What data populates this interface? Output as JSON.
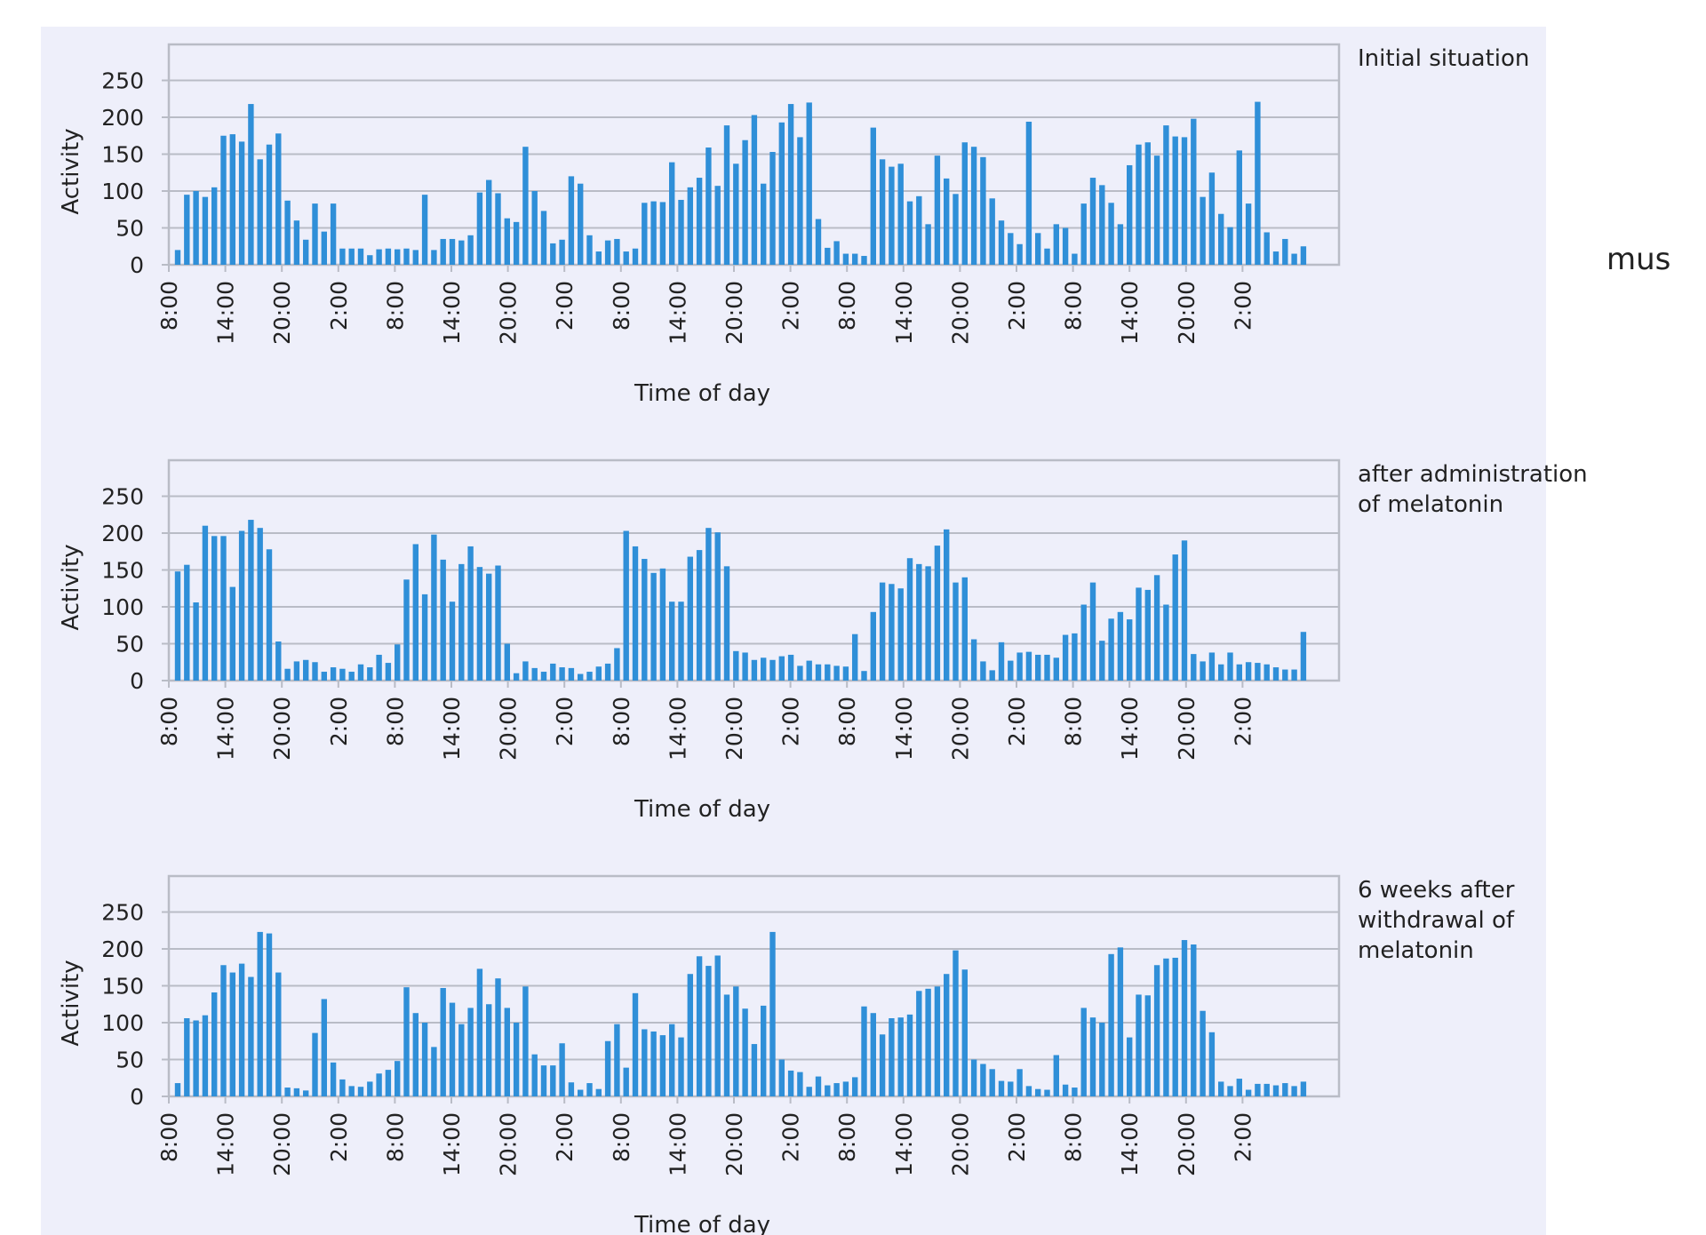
{
  "side_text": "mus",
  "colors": {
    "bar": "#2f8fd8",
    "panel": "#eeeffa",
    "grid": "#b9bcc6",
    "frame": "#b9bcc6",
    "text": "#222222"
  },
  "chart_data": [
    {
      "type": "bar",
      "title": "Initial situation",
      "xlabel": "Time of day",
      "ylabel": "Activity",
      "ylim": [
        0,
        300
      ],
      "yticks": [
        0,
        50,
        100,
        150,
        200,
        250
      ],
      "xtick_labels": [
        "8:00",
        "14:00",
        "20:00",
        "2:00",
        "8:00",
        "14:00",
        "20:00",
        "2:00",
        "8:00",
        "14:00",
        "20:00",
        "2:00",
        "8:00",
        "14:00",
        "20:00",
        "2:00",
        "8:00",
        "14:00",
        "20:00",
        "2:00"
      ],
      "grid": true,
      "values": [
        20,
        95,
        100,
        92,
        105,
        175,
        177,
        167,
        218,
        143,
        163,
        178,
        87,
        60,
        34,
        83,
        45,
        83,
        22,
        22,
        22,
        13,
        21,
        22,
        21,
        22,
        20,
        95,
        20,
        35,
        35,
        33,
        40,
        98,
        115,
        97,
        63,
        58,
        160,
        100,
        73,
        29,
        34,
        120,
        110,
        40,
        18,
        33,
        35,
        18,
        22,
        84,
        86,
        85,
        139,
        88,
        105,
        118,
        159,
        107,
        189,
        137,
        169,
        203,
        110,
        153,
        193,
        218,
        173,
        220,
        62,
        23,
        32,
        15,
        15,
        12,
        186,
        143,
        133,
        137,
        86,
        93,
        55,
        148,
        117,
        96,
        166,
        160,
        146,
        90,
        60,
        43,
        28,
        194,
        43,
        22,
        55,
        50,
        15,
        83,
        118,
        108,
        84,
        55,
        135,
        163,
        166,
        148,
        189,
        174,
        173,
        198,
        92,
        125,
        69,
        51,
        155,
        83,
        221,
        44,
        18,
        35,
        15,
        25
      ]
    },
    {
      "type": "bar",
      "title": "after administration of melatonin",
      "xlabel": "Time of day",
      "ylabel": "Activity",
      "ylim": [
        0,
        300
      ],
      "yticks": [
        0,
        50,
        100,
        150,
        200,
        250
      ],
      "xtick_labels": [
        "8:00",
        "14:00",
        "20:00",
        "2:00",
        "8:00",
        "14:00",
        "20:00",
        "2:00",
        "8:00",
        "14:00",
        "20:00",
        "2:00",
        "8:00",
        "14:00",
        "20:00",
        "2:00",
        "8:00",
        "14:00",
        "20:00",
        "2:00"
      ],
      "grid": true,
      "values": [
        148,
        157,
        106,
        210,
        196,
        196,
        127,
        203,
        218,
        207,
        178,
        53,
        16,
        26,
        28,
        25,
        12,
        18,
        16,
        12,
        22,
        18,
        35,
        24,
        49,
        137,
        185,
        117,
        198,
        164,
        107,
        158,
        182,
        154,
        145,
        156,
        50,
        10,
        26,
        17,
        12,
        23,
        18,
        17,
        9,
        12,
        19,
        23,
        44,
        203,
        182,
        165,
        146,
        152,
        107,
        107,
        168,
        177,
        207,
        201,
        155,
        40,
        38,
        28,
        31,
        28,
        33,
        35,
        20,
        27,
        22,
        22,
        20,
        19,
        63,
        13,
        93,
        133,
        131,
        125,
        166,
        158,
        155,
        183,
        205,
        133,
        140,
        56,
        26,
        14,
        52,
        27,
        38,
        39,
        35,
        35,
        31,
        62,
        64,
        103,
        133,
        54,
        84,
        93,
        83,
        126,
        123,
        143,
        103,
        171,
        190,
        36,
        26,
        38,
        22,
        38,
        22,
        25,
        24,
        22,
        18,
        15,
        15,
        66
      ]
    },
    {
      "type": "bar",
      "title": "6 weeks after withdrawal of melatonin",
      "xlabel": "Time of day",
      "ylabel": "Activity",
      "ylim": [
        0,
        300
      ],
      "yticks": [
        0,
        50,
        100,
        150,
        200,
        250
      ],
      "xtick_labels": [
        "8:00",
        "14:00",
        "20:00",
        "2:00",
        "8:00",
        "14:00",
        "20:00",
        "2:00",
        "8:00",
        "14:00",
        "20:00",
        "2:00",
        "8:00",
        "14:00",
        "20:00",
        "2:00",
        "8:00",
        "14:00",
        "20:00",
        "2:00"
      ],
      "grid": true,
      "values": [
        18,
        106,
        103,
        110,
        141,
        178,
        168,
        180,
        162,
        223,
        221,
        168,
        12,
        11,
        8,
        86,
        132,
        46,
        23,
        14,
        13,
        20,
        31,
        36,
        48,
        148,
        113,
        100,
        67,
        147,
        127,
        98,
        120,
        173,
        125,
        160,
        120,
        100,
        149,
        57,
        42,
        42,
        72,
        19,
        9,
        18,
        10,
        75,
        98,
        39,
        140,
        91,
        88,
        83,
        98,
        80,
        166,
        190,
        177,
        191,
        138,
        149,
        119,
        71,
        123,
        223,
        50,
        35,
        33,
        13,
        27,
        15,
        18,
        20,
        26,
        122,
        113,
        84,
        106,
        107,
        111,
        143,
        146,
        149,
        166,
        198,
        172,
        50,
        44,
        37,
        21,
        20,
        37,
        14,
        10,
        9,
        56,
        16,
        12,
        120,
        107,
        100,
        193,
        202,
        80,
        138,
        137,
        178,
        187,
        188,
        212,
        206,
        116,
        87,
        20,
        14,
        24,
        9,
        17,
        17,
        15,
        18,
        14,
        20
      ]
    }
  ]
}
